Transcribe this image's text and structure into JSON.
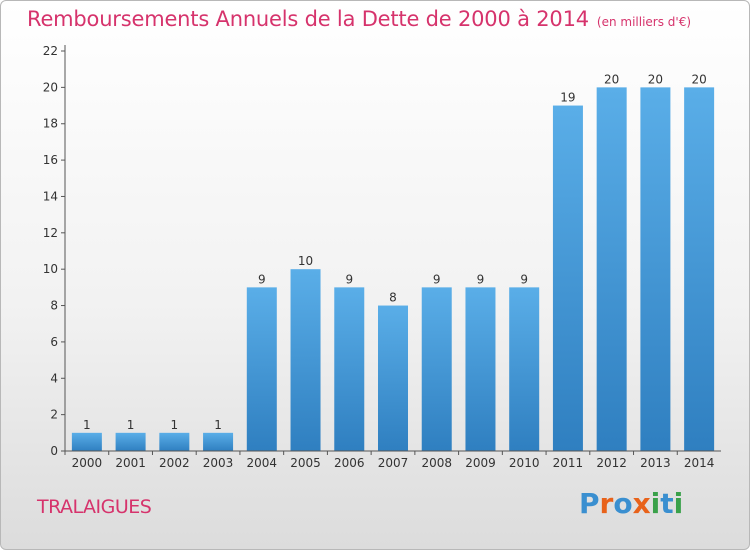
{
  "header": {
    "title": "Remboursements Annuels de la Dette de 2000 à 2014",
    "unit": "(en milliers d'€)"
  },
  "footer": {
    "commune": "TRALAIGUES",
    "logo_text": "Proxiti"
  },
  "colors": {
    "title": "#d6336c",
    "bar_top": "#5aaee8",
    "bar_bottom": "#2f7fc0",
    "logo_letters": [
      "#3a8fd0",
      "#e8621a",
      "#3a8fd0",
      "#e8621a",
      "#3aa14a",
      "#3a8fd0",
      "#3aa14a"
    ]
  },
  "chart_data": {
    "type": "bar",
    "categories": [
      "2000",
      "2001",
      "2002",
      "2003",
      "2004",
      "2005",
      "2006",
      "2007",
      "2008",
      "2009",
      "2010",
      "2011",
      "2012",
      "2013",
      "2014"
    ],
    "values": [
      1,
      1,
      1,
      1,
      9,
      10,
      9,
      8,
      9,
      9,
      9,
      19,
      20,
      20,
      20
    ],
    "data_labels": [
      "1",
      "1",
      "1",
      "1",
      "9",
      "10",
      "9",
      "8",
      "9",
      "9",
      "9",
      "19",
      "20",
      "20",
      "20"
    ],
    "yticks": [
      0,
      2,
      4,
      6,
      8,
      10,
      12,
      14,
      16,
      18,
      20,
      22
    ],
    "ylim": [
      0,
      22
    ],
    "grid": false,
    "legend": "none"
  }
}
